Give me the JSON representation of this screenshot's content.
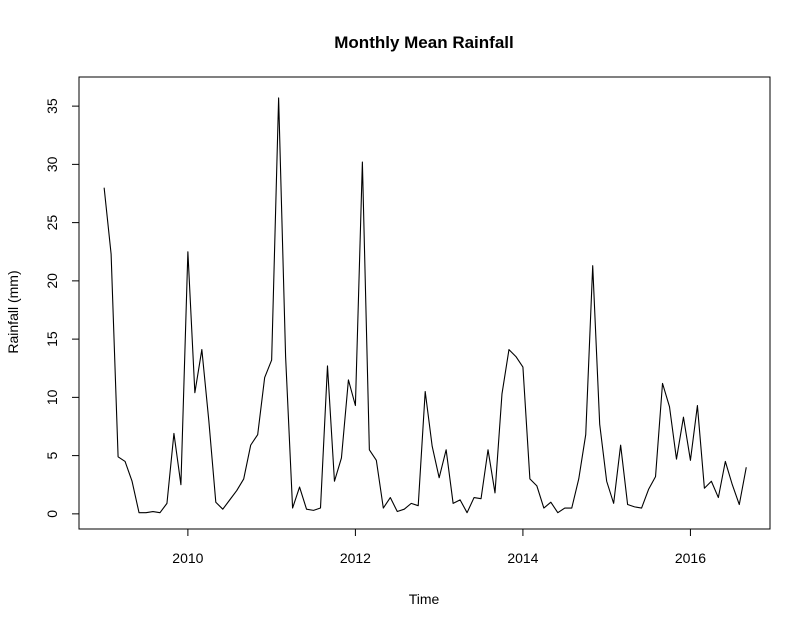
{
  "chart_data": {
    "type": "line",
    "title": "Monthly Mean Rainfall",
    "xlabel": "Time",
    "ylabel": "Rainfall (mm)",
    "xlim": [
      2008.7,
      2016.95
    ],
    "ylim": [
      -1.3,
      37.5
    ],
    "x_ticks": [
      2010,
      2012,
      2014,
      2016
    ],
    "x_tick_labels": [
      "2010",
      "2012",
      "2014",
      "2016"
    ],
    "y_ticks": [
      0,
      5,
      10,
      15,
      20,
      25,
      30,
      35
    ],
    "y_tick_labels": [
      "0",
      "5",
      "10",
      "15",
      "20",
      "25",
      "30",
      "35"
    ],
    "grid": false,
    "legend": "none",
    "line_color": "#000000",
    "x_start": "2009-01",
    "frequency": "monthly",
    "series": [
      {
        "values": [
          28.0,
          22.3,
          4.9,
          4.5,
          2.8,
          0.1,
          0.1,
          0.2,
          0.1,
          0.9,
          6.9,
          2.5,
          22.5,
          10.4,
          14.1,
          8.0,
          1.0,
          0.4,
          1.2,
          2.0,
          3.0,
          5.9,
          6.8,
          11.7,
          13.2,
          35.7,
          13.5,
          0.5,
          2.3,
          0.4,
          0.3,
          0.5,
          12.7,
          2.8,
          4.8,
          11.5,
          9.3,
          30.2,
          5.5,
          4.6,
          0.5,
          1.4,
          0.2,
          0.4,
          0.9,
          0.7,
          10.5,
          5.8,
          3.1,
          5.5,
          0.9,
          1.2,
          0.1,
          1.4,
          1.3,
          5.5,
          1.8,
          10.3,
          14.1,
          13.5,
          12.6,
          3.0,
          2.4,
          0.5,
          1.0,
          0.1,
          0.5,
          0.5,
          3.0,
          6.8,
          21.3,
          7.7,
          2.8,
          0.9,
          5.9,
          0.8,
          0.6,
          0.5,
          2.1,
          3.2,
          11.2,
          9.2,
          4.7,
          8.3,
          4.6,
          9.3,
          2.2,
          2.8,
          1.4,
          4.5,
          2.5,
          0.8,
          4.0
        ]
      }
    ]
  }
}
